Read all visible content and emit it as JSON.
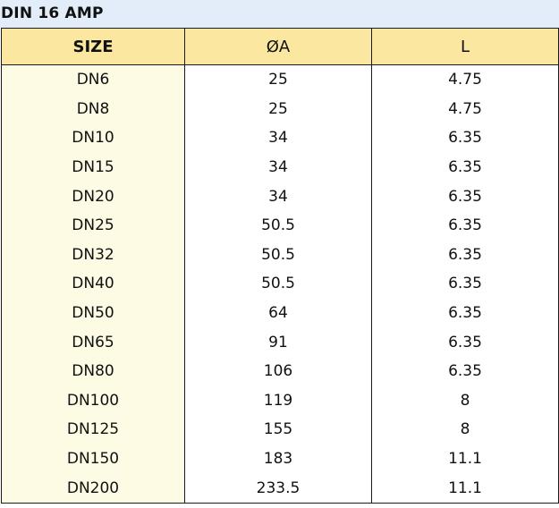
{
  "title": "DIN 16 AMP",
  "table": {
    "headers": [
      "SIZE",
      "ØA",
      "L"
    ],
    "rows": [
      [
        "DN6",
        "25",
        "4.75"
      ],
      [
        "DN8",
        "25",
        "4.75"
      ],
      [
        "DN10",
        "34",
        "6.35"
      ],
      [
        "DN15",
        "34",
        "6.35"
      ],
      [
        "DN20",
        "34",
        "6.35"
      ],
      [
        "DN25",
        "50.5",
        "6.35"
      ],
      [
        "DN32",
        "50.5",
        "6.35"
      ],
      [
        "DN40",
        "50.5",
        "6.35"
      ],
      [
        "DN50",
        "64",
        "6.35"
      ],
      [
        "DN65",
        "91",
        "6.35"
      ],
      [
        "DN80",
        "106",
        "6.35"
      ],
      [
        "DN100",
        "119",
        "8"
      ],
      [
        "DN125",
        "155",
        "8"
      ],
      [
        "DN150",
        "183",
        "11.1"
      ],
      [
        "DN200",
        "233.5",
        "11.1"
      ]
    ]
  },
  "colors": {
    "title_background": "#e3edf9",
    "header_background": "#fbe7a0",
    "size_column_background": "#fefbe5",
    "border": "#1a1a1a"
  }
}
